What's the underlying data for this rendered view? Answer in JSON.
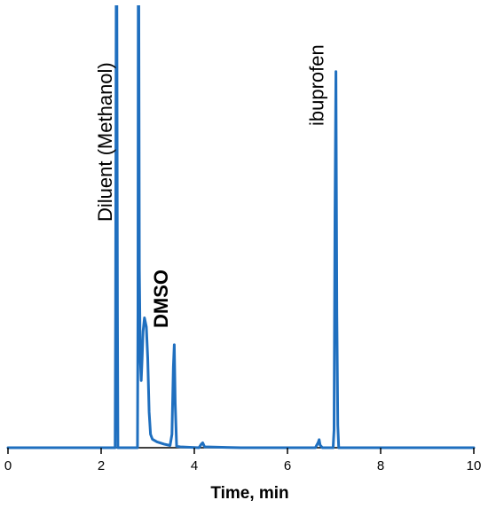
{
  "chart_data": {
    "type": "line",
    "title": "",
    "xlabel": "Time, min",
    "ylabel": "",
    "xlim": [
      0,
      10
    ],
    "x_ticks": [
      "0",
      "2",
      "4",
      "6",
      "8",
      "10"
    ],
    "grid": false,
    "trace_color": "#1f6fbf",
    "baseline_color": "#000000",
    "series": [
      {
        "x": [
          0.0,
          2.0,
          2.3,
          2.31,
          2.33,
          2.35,
          2.36,
          2.78,
          2.79,
          2.8,
          2.82,
          2.84,
          2.86,
          2.88,
          2.9,
          2.93,
          2.97,
          3.0,
          3.03,
          3.06,
          3.1,
          3.2,
          3.35,
          3.48,
          3.52,
          3.55,
          3.57,
          3.59,
          3.62,
          3.7,
          4.1,
          4.15,
          4.18,
          4.22,
          5.0,
          6.6,
          6.66,
          6.68,
          6.7,
          6.75,
          6.98,
          7.0,
          7.02,
          7.04,
          7.06,
          7.08,
          7.1,
          7.2,
          10.0
        ],
        "y": [
          0.0,
          0.0,
          0.0,
          30.0,
          140.0,
          30.0,
          0.0,
          0.0,
          30.0,
          140.0,
          40.0,
          20.0,
          15.0,
          20.0,
          26.0,
          29.0,
          27.0,
          20.0,
          8.0,
          3.0,
          1.9,
          1.3,
          0.8,
          0.5,
          3.0,
          18.0,
          23.0,
          10.0,
          0.3,
          0.2,
          0.0,
          0.8,
          1.1,
          0.2,
          0.0,
          0.0,
          1.2,
          1.8,
          0.6,
          0.0,
          0.0,
          4.0,
          52.0,
          84.0,
          30.0,
          5.0,
          0.0,
          0.0,
          0.0
        ]
      }
    ],
    "annotations": [
      {
        "text": "Diluent  (Methanol)",
        "x": 2.3,
        "bold": false
      },
      {
        "text": "DMSO",
        "x": 3.5,
        "bold": true
      },
      {
        "text": "ibuprofen",
        "x": 6.85,
        "bold": false
      }
    ]
  }
}
